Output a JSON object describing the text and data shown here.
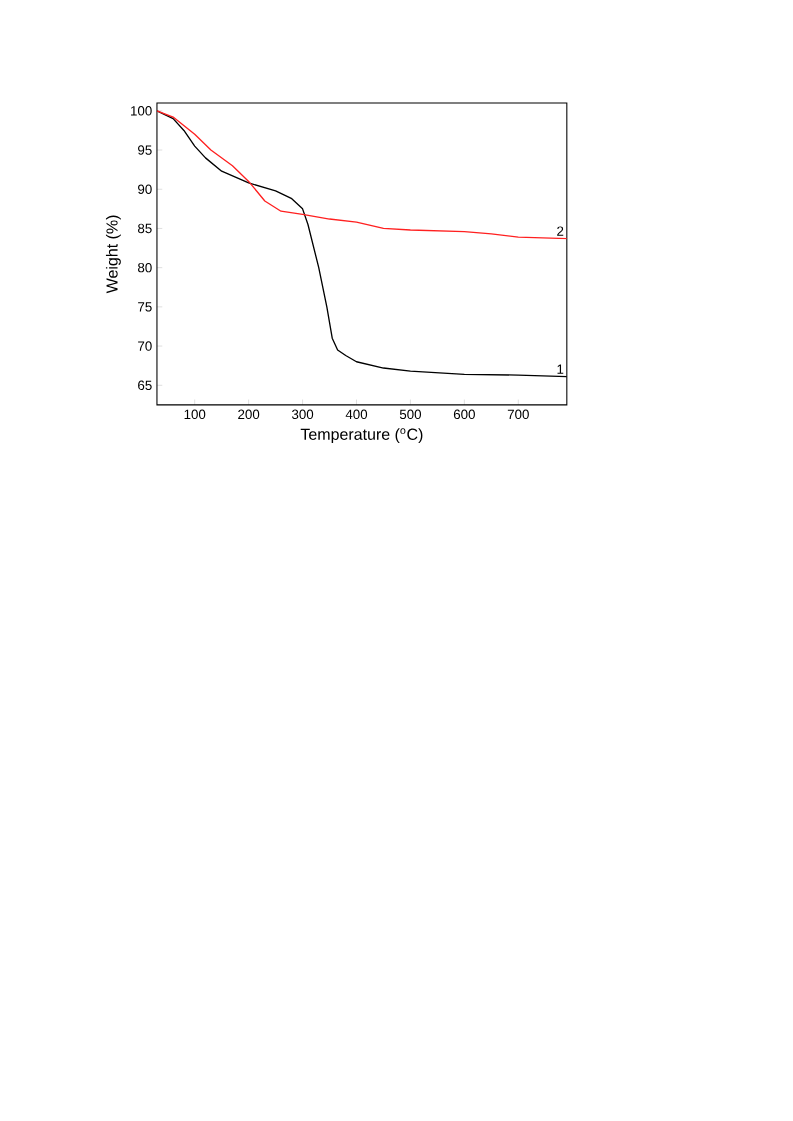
{
  "chart_data": {
    "type": "line",
    "xlabel": "Temperature ($^{o}$C)",
    "ylabel": "Weight (%)",
    "xlim": [
      30,
      790
    ],
    "ylim": [
      62.5,
      101
    ],
    "xticks": [
      100,
      200,
      300,
      400,
      500,
      600,
      700
    ],
    "yticks": [
      65,
      70,
      75,
      80,
      85,
      90,
      95,
      100
    ],
    "grid": false,
    "legend": false,
    "marker": "none",
    "line_style": "solid",
    "series": [
      {
        "name": "1",
        "color": "#000000",
        "x": [
          30,
          60,
          80,
          100,
          120,
          150,
          200,
          250,
          280,
          300,
          310,
          330,
          345,
          355,
          365,
          380,
          400,
          450,
          500,
          600,
          700,
          790
        ],
        "values": [
          100,
          99,
          97.5,
          95.5,
          94,
          92.3,
          90.8,
          89.8,
          88.8,
          87.5,
          85.5,
          80,
          75,
          71,
          69.5,
          68.8,
          68,
          67.2,
          66.8,
          66.4,
          66.3,
          66.1
        ]
      },
      {
        "name": "2",
        "color": "#ff2020",
        "x": [
          30,
          60,
          100,
          130,
          170,
          200,
          230,
          260,
          300,
          350,
          400,
          420,
          450,
          500,
          600,
          650,
          700,
          790
        ],
        "values": [
          100,
          99.2,
          97,
          95,
          93,
          91,
          88.5,
          87.2,
          86.8,
          86.2,
          85.8,
          85.5,
          85,
          84.8,
          84.6,
          84.3,
          83.9,
          83.7
        ]
      }
    ]
  }
}
